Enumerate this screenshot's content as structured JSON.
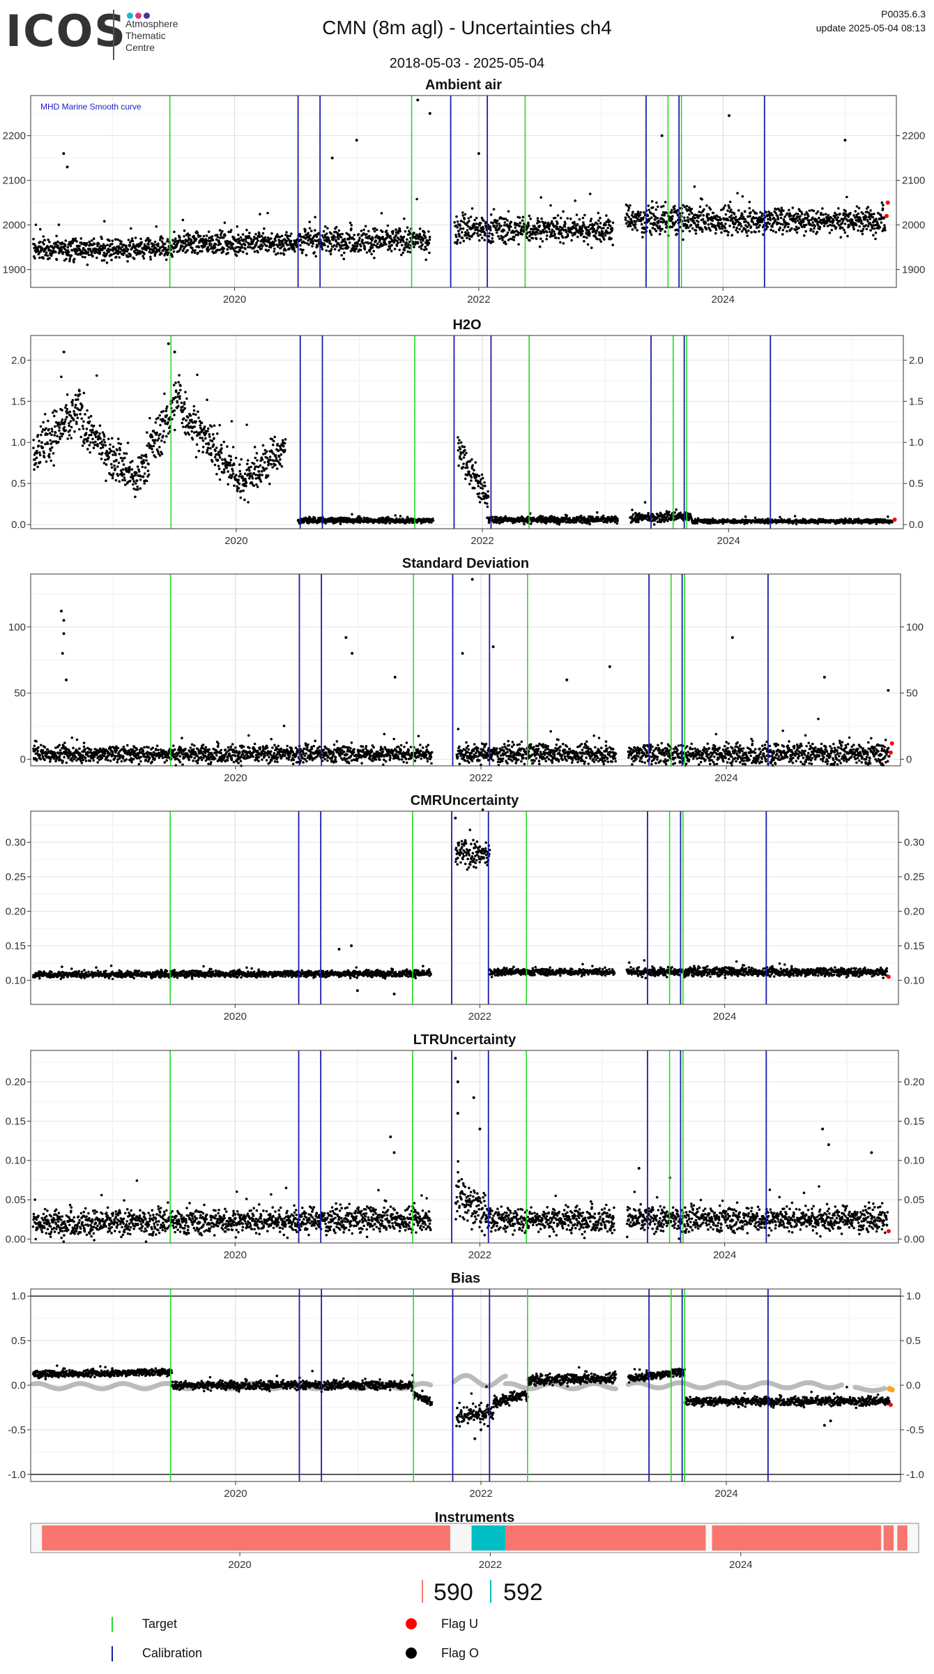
{
  "header": {
    "logo_text": "ICOS",
    "logo_tagline": [
      "Atmosphere",
      "Thematic",
      "Centre"
    ],
    "title": "CMN  (8m agl) - Uncertainties ch4",
    "date_range": "2018-05-03 - 2025-05-04",
    "version": "P0035.6.3",
    "update": "update  2025-05-04 08:13"
  },
  "colors": {
    "target_line": "#22dd22",
    "calibration_line": "#1a1aaa",
    "data_point": "#000000",
    "flag_u": "#ff0000",
    "flag_o": "#000000",
    "smooth_curve": "#bbbbbb",
    "instrument_590": "#f8766d",
    "instrument_592": "#00bfc4",
    "logo_dots": [
      "#1eb2d8",
      "#e6337a",
      "#3a3a9a"
    ]
  },
  "events": {
    "target_dates": [
      2019.47,
      2021.45,
      2022.38,
      2023.55,
      2023.66
    ],
    "calibration_dates": [
      2020.52,
      2020.7,
      2021.77,
      2022.07,
      2023.37,
      2023.64,
      2024.34
    ]
  },
  "chart_data": [
    {
      "type": "scatter",
      "title": "Ambient air",
      "annotation": "MHD Marine Smooth curve",
      "xlim": [
        2018.33,
        2025.42
      ],
      "ylim": [
        1860,
        2290
      ],
      "yticks": [
        1900,
        2000,
        2100,
        2200
      ],
      "yticklabels": [
        "1900",
        "2000",
        "2100",
        "2200"
      ],
      "xticks": [
        2020,
        2022,
        2024
      ],
      "xticklabels": [
        "2020",
        "2022",
        "2024"
      ],
      "grid": true,
      "gaps": [
        [
          2021.6,
          2021.8
        ],
        [
          2023.1,
          2023.2
        ]
      ],
      "segments": [
        {
          "from": 2018.35,
          "to": 2019.5,
          "center": 1945,
          "spread": 30
        },
        {
          "from": 2019.5,
          "to": 2020.5,
          "center": 1960,
          "spread": 32
        },
        {
          "from": 2020.5,
          "to": 2021.6,
          "center": 1965,
          "spread": 35
        },
        {
          "from": 2021.8,
          "to": 2023.1,
          "center": 1990,
          "spread": 38
        },
        {
          "from": 2023.2,
          "to": 2024.5,
          "center": 2010,
          "spread": 40
        },
        {
          "from": 2024.5,
          "to": 2025.33,
          "center": 2010,
          "spread": 35
        }
      ],
      "outliers": [
        [
          2018.6,
          2160
        ],
        [
          2018.63,
          2130
        ],
        [
          2020.8,
          2150
        ],
        [
          2021.0,
          2190
        ],
        [
          2021.5,
          2280
        ],
        [
          2021.6,
          2250
        ],
        [
          2022.0,
          2160
        ],
        [
          2023.5,
          2200
        ],
        [
          2024.05,
          2245
        ],
        [
          2025.0,
          2190
        ]
      ],
      "flag_u_points": [
        [
          2025.34,
          2020
        ],
        [
          2025.35,
          2050
        ]
      ]
    },
    {
      "type": "scatter",
      "title": "H2O",
      "xlim": [
        2018.33,
        2025.42
      ],
      "ylim": [
        -0.05,
        2.3
      ],
      "yticks": [
        0.0,
        0.5,
        1.0,
        1.5,
        2.0
      ],
      "yticklabels": [
        "0.0",
        "0.5",
        "1.0",
        "1.5",
        "2.0"
      ],
      "xticks": [
        2020,
        2022,
        2024
      ],
      "xticklabels": [
        "2020",
        "2022",
        "2024"
      ],
      "grid": true,
      "gaps": [
        [
          2021.6,
          2021.8
        ],
        [
          2023.1,
          2023.2
        ]
      ],
      "segments": [
        {
          "from": 2018.35,
          "to": 2018.75,
          "start": 0.9,
          "end": 1.4,
          "spread": 0.35
        },
        {
          "from": 2018.75,
          "to": 2019.2,
          "start": 1.2,
          "end": 0.5,
          "spread": 0.3
        },
        {
          "from": 2019.2,
          "to": 2019.55,
          "start": 0.6,
          "end": 1.6,
          "spread": 0.35
        },
        {
          "from": 2019.55,
          "to": 2020.0,
          "start": 1.4,
          "end": 0.6,
          "spread": 0.35
        },
        {
          "from": 2020.0,
          "to": 2020.4,
          "start": 0.5,
          "end": 0.9,
          "spread": 0.3
        },
        {
          "from": 2020.5,
          "to": 2021.6,
          "start": 0.05,
          "end": 0.05,
          "spread": 0.04
        },
        {
          "from": 2021.8,
          "to": 2022.05,
          "start": 0.9,
          "end": 0.3,
          "spread": 0.25
        },
        {
          "from": 2022.05,
          "to": 2023.1,
          "start": 0.06,
          "end": 0.06,
          "spread": 0.05
        },
        {
          "from": 2023.2,
          "to": 2023.7,
          "start": 0.08,
          "end": 0.1,
          "spread": 0.07
        },
        {
          "from": 2023.7,
          "to": 2025.33,
          "start": 0.04,
          "end": 0.04,
          "spread": 0.03
        }
      ],
      "outliers": [
        [
          2018.6,
          2.1
        ],
        [
          2019.45,
          2.2
        ],
        [
          2019.5,
          2.1
        ]
      ],
      "flag_u_points": [
        [
          2025.35,
          0.06
        ]
      ]
    },
    {
      "type": "scatter",
      "title": "Standard Deviation",
      "xlim": [
        2018.33,
        2025.42
      ],
      "ylim": [
        -5,
        140
      ],
      "yticks": [
        0,
        50,
        100
      ],
      "yticklabels": [
        "0",
        "50",
        "100"
      ],
      "xticks": [
        2020,
        2022,
        2024
      ],
      "xticklabels": [
        "2020",
        "2022",
        "2024"
      ],
      "grid": true,
      "gaps": [
        [
          2021.6,
          2021.8
        ],
        [
          2023.1,
          2023.2
        ]
      ],
      "segments": [
        {
          "from": 2018.35,
          "to": 2021.6,
          "start": 4,
          "end": 4,
          "spread": 8
        },
        {
          "from": 2021.8,
          "to": 2023.1,
          "start": 4,
          "end": 4,
          "spread": 9
        },
        {
          "from": 2023.2,
          "to": 2025.33,
          "start": 4,
          "end": 4,
          "spread": 10
        }
      ],
      "outliers": [
        [
          2018.58,
          112
        ],
        [
          2018.6,
          105
        ],
        [
          2018.6,
          95
        ],
        [
          2018.59,
          80
        ],
        [
          2018.62,
          60
        ],
        [
          2020.9,
          92
        ],
        [
          2020.95,
          80
        ],
        [
          2021.3,
          62
        ],
        [
          2021.85,
          80
        ],
        [
          2021.93,
          136
        ],
        [
          2022.1,
          85
        ],
        [
          2022.7,
          60
        ],
        [
          2023.05,
          70
        ],
        [
          2024.05,
          92
        ],
        [
          2024.8,
          62
        ],
        [
          2025.32,
          52
        ]
      ],
      "flag_u_points": [
        [
          2025.34,
          5
        ],
        [
          2025.35,
          12
        ]
      ]
    },
    {
      "type": "scatter",
      "title": "CMRUncertainty",
      "xlim": [
        2018.33,
        2025.42
      ],
      "ylim": [
        0.065,
        0.345
      ],
      "yticks": [
        0.1,
        0.15,
        0.2,
        0.25,
        0.3
      ],
      "yticklabels": [
        "0.10",
        "0.15",
        "0.20",
        "0.25",
        "0.30"
      ],
      "xticks": [
        2020,
        2022,
        2024
      ],
      "xticklabels": [
        "2020",
        "2022",
        "2024"
      ],
      "grid": true,
      "gaps": [
        [
          2021.6,
          2021.8
        ],
        [
          2023.1,
          2023.2
        ]
      ],
      "segments": [
        {
          "from": 2018.35,
          "to": 2021.6,
          "start": 0.108,
          "end": 0.11,
          "spread": 0.006
        },
        {
          "from": 2021.8,
          "to": 2022.08,
          "start": 0.285,
          "end": 0.28,
          "spread": 0.025
        },
        {
          "from": 2022.08,
          "to": 2023.1,
          "start": 0.112,
          "end": 0.112,
          "spread": 0.006
        },
        {
          "from": 2023.2,
          "to": 2025.33,
          "start": 0.112,
          "end": 0.112,
          "spread": 0.008
        }
      ],
      "outliers": [
        [
          2020.85,
          0.145
        ],
        [
          2020.95,
          0.15
        ],
        [
          2021.0,
          0.085
        ],
        [
          2021.3,
          0.08
        ],
        [
          2021.8,
          0.335
        ]
      ],
      "flag_u_points": [
        [
          2025.34,
          0.105
        ]
      ]
    },
    {
      "type": "scatter",
      "title": "LTRUncertainty",
      "xlim": [
        2018.33,
        2025.42
      ],
      "ylim": [
        -0.005,
        0.24
      ],
      "yticks": [
        0.0,
        0.05,
        0.1,
        0.15,
        0.2
      ],
      "yticklabels": [
        "0.00",
        "0.05",
        "0.10",
        "0.15",
        "0.20"
      ],
      "xticks": [
        2020,
        2022,
        2024
      ],
      "xticklabels": [
        "2020",
        "2022",
        "2024"
      ],
      "grid": true,
      "gaps": [
        [
          2021.6,
          2021.8
        ],
        [
          2023.1,
          2023.2
        ]
      ],
      "segments": [
        {
          "from": 2018.35,
          "to": 2021.6,
          "start": 0.02,
          "end": 0.025,
          "spread": 0.02
        },
        {
          "from": 2021.8,
          "to": 2022.05,
          "start": 0.06,
          "end": 0.03,
          "spread": 0.04
        },
        {
          "from": 2022.05,
          "to": 2023.1,
          "start": 0.025,
          "end": 0.025,
          "spread": 0.02
        },
        {
          "from": 2023.2,
          "to": 2025.33,
          "start": 0.025,
          "end": 0.025,
          "spread": 0.02
        }
      ],
      "outliers": [
        [
          2021.27,
          0.13
        ],
        [
          2021.3,
          0.11
        ],
        [
          2021.8,
          0.23
        ],
        [
          2021.82,
          0.2
        ],
        [
          2021.82,
          0.16
        ],
        [
          2021.95,
          0.18
        ],
        [
          2022.0,
          0.14
        ],
        [
          2023.3,
          0.09
        ],
        [
          2024.8,
          0.14
        ],
        [
          2024.85,
          0.12
        ],
        [
          2025.2,
          0.11
        ]
      ],
      "flag_u_points": [
        [
          2025.34,
          0.01
        ]
      ]
    },
    {
      "type": "scatter",
      "title": "Bias",
      "xlim": [
        2018.33,
        2025.42
      ],
      "ylim": [
        -1.08,
        1.08
      ],
      "yticks": [
        -1.0,
        -0.5,
        0.0,
        0.5,
        1.0
      ],
      "yticklabels": [
        "-1.0",
        "-0.5",
        "0.0",
        "0.5",
        "1.0"
      ],
      "xticks": [
        2020,
        2022,
        2024
      ],
      "xticklabels": [
        "2020",
        "2022",
        "2024"
      ],
      "grid": true,
      "hlines": [
        1.0,
        -1.0
      ],
      "gaps": [
        [
          2021.6,
          2021.8
        ],
        [
          2023.1,
          2023.2
        ]
      ],
      "segments": [
        {
          "from": 2018.35,
          "to": 2019.48,
          "start": 0.12,
          "end": 0.15,
          "spread": 0.05
        },
        {
          "from": 2019.48,
          "to": 2021.45,
          "start": 0.0,
          "end": 0.0,
          "spread": 0.06
        },
        {
          "from": 2021.45,
          "to": 2021.6,
          "start": -0.1,
          "end": -0.2,
          "spread": 0.06
        },
        {
          "from": 2021.8,
          "to": 2022.1,
          "start": -0.35,
          "end": -0.3,
          "spread": 0.14
        },
        {
          "from": 2022.1,
          "to": 2022.38,
          "start": -0.2,
          "end": -0.1,
          "spread": 0.08
        },
        {
          "from": 2022.38,
          "to": 2023.1,
          "start": 0.05,
          "end": 0.08,
          "spread": 0.07
        },
        {
          "from": 2023.2,
          "to": 2023.66,
          "start": 0.08,
          "end": 0.15,
          "spread": 0.06
        },
        {
          "from": 2023.66,
          "to": 2025.33,
          "start": -0.18,
          "end": -0.18,
          "spread": 0.06
        }
      ],
      "smooth_curve": [
        {
          "from": 2018.35,
          "to": 2021.6,
          "level": -0.01,
          "amp": 0.03
        },
        {
          "from": 2021.78,
          "to": 2022.2,
          "level": 0.05,
          "amp": 0.06
        },
        {
          "from": 2022.2,
          "to": 2023.1,
          "level": -0.01,
          "amp": 0.03
        },
        {
          "from": 2023.2,
          "to": 2024.95,
          "level": 0.0,
          "amp": 0.03
        },
        {
          "from": 2025.05,
          "to": 2025.3,
          "level": -0.04,
          "amp": 0.02
        }
      ],
      "outliers": [
        [
          2021.95,
          -0.6
        ],
        [
          2022.0,
          -0.5
        ],
        [
          2024.8,
          -0.45
        ],
        [
          2024.85,
          -0.4
        ]
      ],
      "flag_u_points": [
        [
          2025.34,
          -0.22
        ]
      ],
      "orange_points": [
        [
          2025.33,
          -0.04
        ],
        [
          2025.35,
          -0.05
        ]
      ]
    }
  ],
  "instruments": {
    "title": "Instruments",
    "xlim": [
      2018.33,
      2025.42
    ],
    "xticks": [
      2020,
      2022,
      2024
    ],
    "xticklabels": [
      "2020",
      "2022",
      "2024"
    ],
    "bars": [
      {
        "instrument": "590",
        "from": 2018.42,
        "to": 2021.68
      },
      {
        "instrument": "592",
        "from": 2021.85,
        "to": 2022.12
      },
      {
        "instrument": "590",
        "from": 2022.12,
        "to": 2023.72
      },
      {
        "instrument": "590",
        "from": 2023.77,
        "to": 2025.12
      },
      {
        "instrument": "590",
        "from": 2025.14,
        "to": 2025.22
      },
      {
        "instrument": "590",
        "from": 2025.25,
        "to": 2025.33
      }
    ],
    "legend": [
      {
        "label": "590",
        "color": "#f8766d"
      },
      {
        "label": "592",
        "color": "#00bfc4"
      }
    ]
  },
  "legend": {
    "target": "Target",
    "calibration": "Calibration",
    "flag_u": "Flag U",
    "flag_o": "Flag O"
  }
}
